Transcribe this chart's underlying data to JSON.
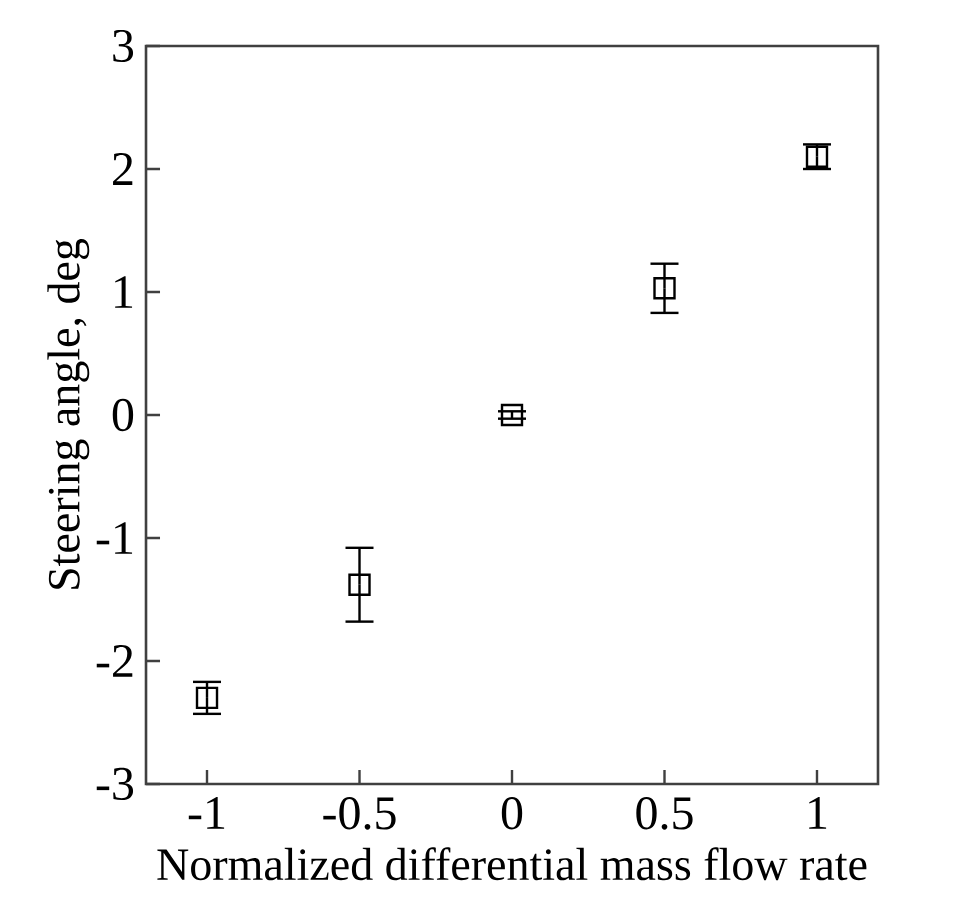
{
  "chart_data": {
    "type": "scatter",
    "xlabel": "Normalized differential mass flow rate",
    "ylabel": "Steering angle, deg",
    "x": [
      -1,
      -0.5,
      0,
      0.5,
      1
    ],
    "values": [
      -2.3,
      -1.38,
      0.0,
      1.03,
      2.1
    ],
    "errors": [
      0.13,
      0.3,
      0.03,
      0.2,
      0.1
    ],
    "color": "#000000",
    "marker": "square",
    "xlim": [
      -1.2,
      1.2
    ],
    "xticks": [
      -1,
      -0.5,
      0,
      0.5,
      1
    ],
    "ylim": [
      -3,
      3
    ],
    "yticks": [
      -3,
      -2,
      -1,
      0,
      1,
      2,
      3
    ],
    "grid": false
  }
}
